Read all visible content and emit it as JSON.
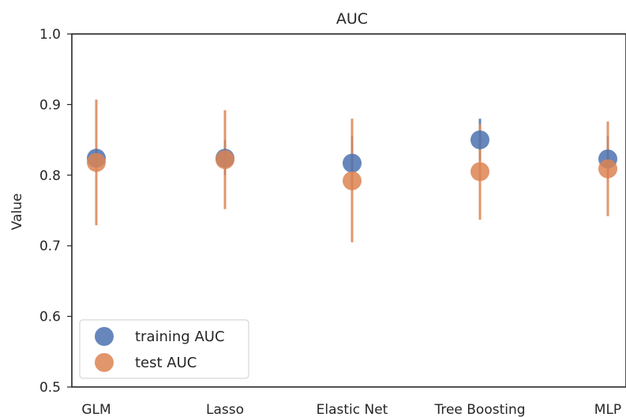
{
  "chart_data": {
    "type": "scatter",
    "title": "AUC",
    "xlabel": "",
    "ylabel": "Value",
    "categories": [
      "GLM",
      "Lasso",
      "Elastic Net",
      "Tree Boosting",
      "MLP"
    ],
    "ylim": [
      0.5,
      1.0
    ],
    "yticks": [
      "0.5",
      "0.6",
      "0.7",
      "0.8",
      "0.9",
      "1.0"
    ],
    "grid": false,
    "legend_position": "bottom-left",
    "series": [
      {
        "name": "training AUC",
        "color": "#4c72b0",
        "values": [
          0.824,
          0.824,
          0.817,
          0.85,
          0.823
        ],
        "lower": [
          0.812,
          0.8,
          0.78,
          0.82,
          0.795
        ],
        "upper": [
          0.838,
          0.85,
          0.855,
          0.88,
          0.855
        ]
      },
      {
        "name": "test AUC",
        "color": "#dd8452",
        "values": [
          0.818,
          0.822,
          0.792,
          0.805,
          0.809
        ],
        "lower": [
          0.729,
          0.752,
          0.705,
          0.737,
          0.742
        ],
        "upper": [
          0.907,
          0.892,
          0.88,
          0.872,
          0.876
        ]
      }
    ]
  }
}
